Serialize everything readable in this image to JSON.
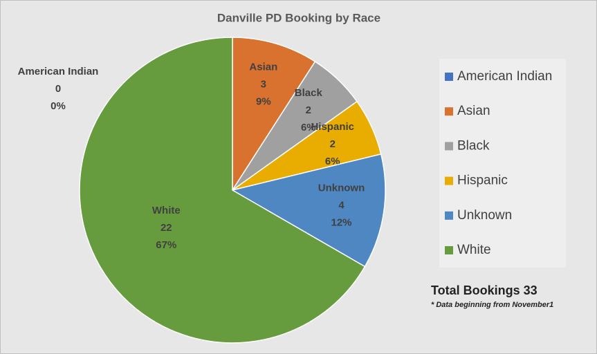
{
  "chart_data": {
    "type": "pie",
    "title": "Danville PD Booking by Race",
    "categories": [
      "American Indian",
      "Asian",
      "Black",
      "Hispanic",
      "Unknown",
      "White"
    ],
    "values": [
      0,
      3,
      2,
      2,
      4,
      22
    ],
    "percent_labels": [
      "0%",
      "9%",
      "6%",
      "6%",
      "12%",
      "67%"
    ],
    "colors": [
      "#4472c4",
      "#d9712f",
      "#a0a0a0",
      "#e8ad00",
      "#4f87c2",
      "#669c3e"
    ],
    "legend": "right",
    "annotations": [
      "Total Bookings 33",
      "* Data beginning from November1"
    ]
  }
}
